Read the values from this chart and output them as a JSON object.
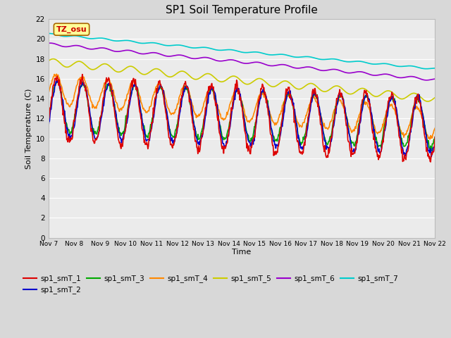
{
  "title": "SP1 Soil Temperature Profile",
  "xlabel": "Time",
  "ylabel": "Soil Temperature (C)",
  "ylim": [
    0,
    22
  ],
  "yticks": [
    0,
    2,
    4,
    6,
    8,
    10,
    12,
    14,
    16,
    18,
    20,
    22
  ],
  "xtick_labels": [
    "Nov 7",
    "Nov 8",
    "Nov 9",
    "Nov 10",
    "Nov 11",
    "Nov 12",
    "Nov 13",
    "Nov 14",
    "Nov 15",
    "Nov 16",
    "Nov 17",
    "Nov 18",
    "Nov 19",
    "Nov 20",
    "Nov 21",
    "Nov 22"
  ],
  "annotation_text": "TZ_osu",
  "annotation_color": "#cc0000",
  "annotation_bg": "#ffff99",
  "annotation_border": "#aa6600",
  "series_colors": {
    "sp1_smT_1": "#dd0000",
    "sp1_smT_2": "#0000cc",
    "sp1_smT_3": "#00aa00",
    "sp1_smT_4": "#ff8800",
    "sp1_smT_5": "#cccc00",
    "sp1_smT_6": "#9900cc",
    "sp1_smT_7": "#00cccc"
  },
  "bg_color": "#d8d8d8",
  "plot_bg": "#ebebeb",
  "grid_color": "#ffffff",
  "linewidth": 1.2,
  "n_points": 720,
  "days": 15
}
